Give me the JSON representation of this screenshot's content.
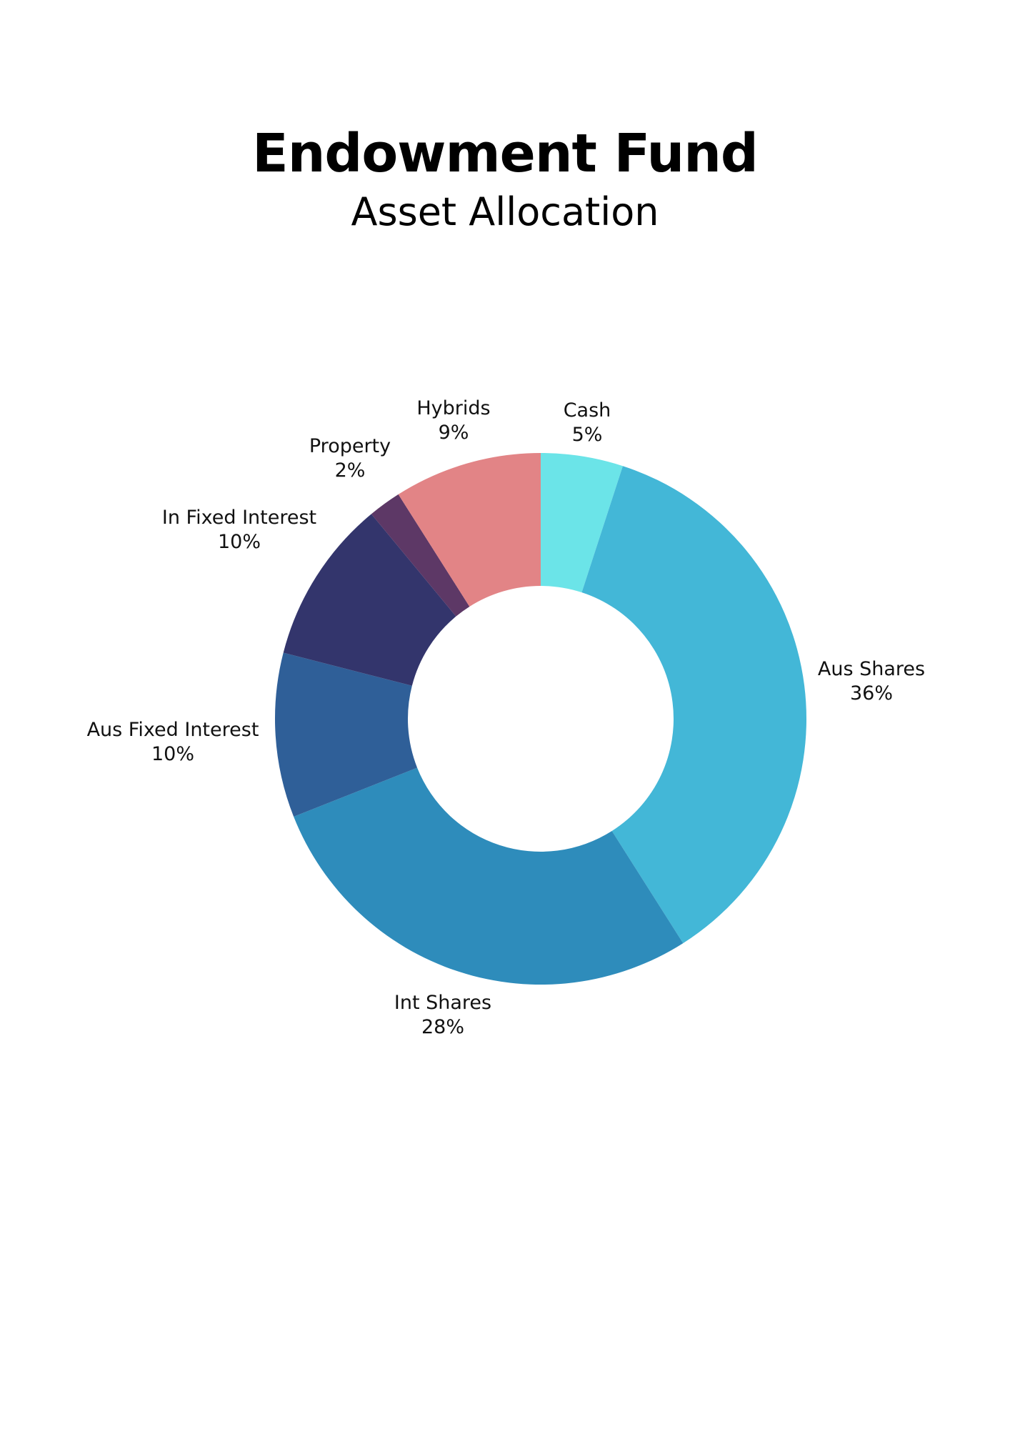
{
  "chart_data": {
    "type": "pie",
    "title": "Endowment Fund",
    "subtitle": "Asset Allocation",
    "donut": true,
    "slices": [
      {
        "name": "Cash",
        "value": 5,
        "label": "5%",
        "color": "#6be4e8"
      },
      {
        "name": "Aus Shares",
        "value": 36,
        "label": "36%",
        "color": "#43b7d7"
      },
      {
        "name": "Int Shares",
        "value": 28,
        "label": "28%",
        "color": "#2e8cbb"
      },
      {
        "name": "Aus Fixed Interest",
        "value": 10,
        "label": "10%",
        "color": "#2f5f98"
      },
      {
        "name": "In Fixed Interest",
        "value": 10,
        "label": "10%",
        "color": "#33356c"
      },
      {
        "name": "Property",
        "value": 2,
        "label": "2%",
        "color": "#5d3866"
      },
      {
        "name": "Hybrids",
        "value": 9,
        "label": "9%",
        "color": "#e28486"
      }
    ]
  }
}
